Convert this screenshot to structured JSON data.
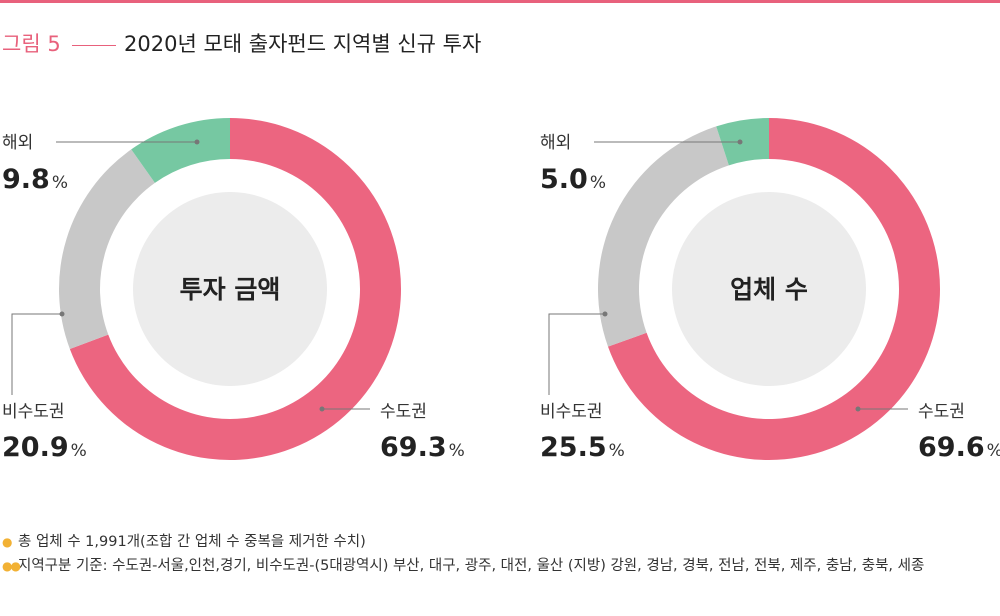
{
  "header": {
    "figure_label": "그림 5",
    "title": "2020년 모태 출자펀드 지역별 신규 투자"
  },
  "colors": {
    "capital": "#ec6580",
    "non_capital": "#c8c8c8",
    "overseas": "#76c8a2",
    "center": "#ececec",
    "accent": "#e8617c",
    "bullet": "#f2b134"
  },
  "chart_data": [
    {
      "type": "pie",
      "center_label": "투자 금액",
      "slices": [
        {
          "label": "수도권",
          "value": 69.3,
          "value_text": "69.3",
          "unit": "%"
        },
        {
          "label": "비수도권",
          "value": 20.9,
          "value_text": "20.9",
          "unit": "%"
        },
        {
          "label": "해외",
          "value": 9.8,
          "value_text": "9.8",
          "unit": "%"
        }
      ]
    },
    {
      "type": "pie",
      "center_label": "업체 수",
      "slices": [
        {
          "label": "수도권",
          "value": 69.6,
          "value_text": "69.6",
          "unit": "%"
        },
        {
          "label": "비수도권",
          "value": 25.5,
          "value_text": "25.5",
          "unit": "%"
        },
        {
          "label": "해외",
          "value": 5.0,
          "value_text": "5.0",
          "unit": "%"
        }
      ]
    }
  ],
  "notes": [
    "총 업체 수 1,991개(조합 간 업체 수 중복을 제거한 수치)",
    "지역구분 기준: 수도권-서울,인천,경기, 비수도권-(5대광역시) 부산, 대구, 광주, 대전, 울산 (지방) 강원, 경남, 경북, 전남, 전북, 제주, 충남, 충북, 세종"
  ]
}
